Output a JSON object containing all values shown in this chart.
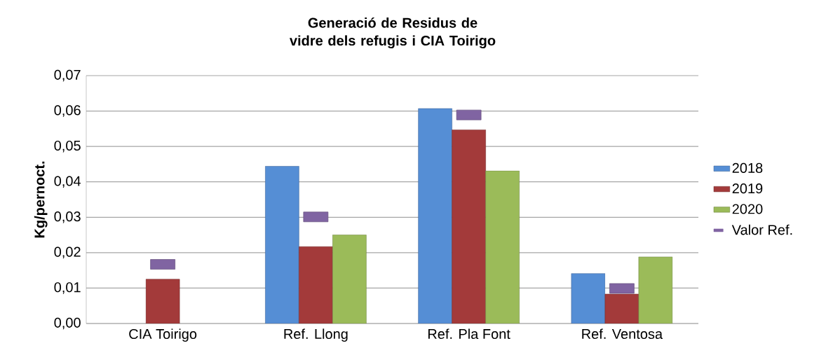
{
  "chart_data": {
    "type": "bar",
    "title": "Generació de Residus de vidre dels refugis i CIA Toirigo",
    "ylabel": "Kg/pernoct.",
    "categories": [
      "CIA Toirigo",
      "Ref. Llong",
      "Ref. Pla Font",
      "Ref. Ventosa"
    ],
    "series": [
      {
        "name": "2018",
        "color": "#558ed5",
        "values": [
          null,
          0.0444,
          0.0607,
          0.0141
        ]
      },
      {
        "name": "2019",
        "color": "#a33a3a",
        "values": [
          0.0125,
          0.0217,
          0.0547,
          0.0083
        ]
      },
      {
        "name": "2020",
        "color": "#9bbb59",
        "values": [
          null,
          0.025,
          0.0431,
          0.0188
        ]
      },
      {
        "name": "Valor Ref.",
        "type": "scatter",
        "color": "#8064a2",
        "values": [
          0.0167,
          0.0301,
          0.0589,
          0.0099
        ]
      }
    ],
    "ylim": [
      0,
      0.07
    ],
    "yticks": [
      {
        "value": 0,
        "label": "0,00"
      },
      {
        "value": 0.01,
        "label": "0,01"
      },
      {
        "value": 0.02,
        "label": "0,02"
      },
      {
        "value": 0.03,
        "label": "0,03"
      },
      {
        "value": 0.04,
        "label": "0,04"
      },
      {
        "value": 0.05,
        "label": "0,05"
      },
      {
        "value": 0.06,
        "label": "0,06"
      },
      {
        "value": 0.07,
        "label": "0,07"
      }
    ],
    "grid": "y",
    "legend": "right"
  }
}
